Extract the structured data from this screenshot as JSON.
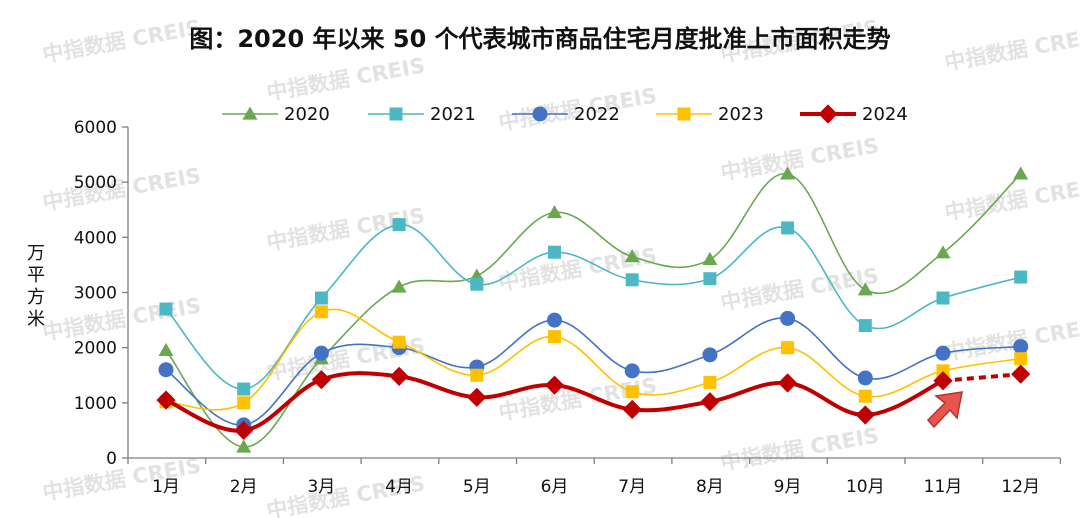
{
  "chart_data": {
    "type": "line",
    "title": "图：2020 年以来 50 个代表城市商品住宅月度批准上市面积走势",
    "ylabel": "万平方米",
    "xlabel": "",
    "ylim": [
      0,
      6000
    ],
    "yticks": [
      0,
      1000,
      2000,
      3000,
      4000,
      5000,
      6000
    ],
    "grid": false,
    "legend_position": "top",
    "categories": [
      "1月",
      "2月",
      "3月",
      "4月",
      "5月",
      "6月",
      "7月",
      "8月",
      "9月",
      "10月",
      "11月",
      "12月"
    ],
    "series": [
      {
        "name": "2020",
        "color": "#6aa84f",
        "marker": "triangle",
        "values": [
          1950,
          200,
          1800,
          3100,
          3300,
          4450,
          3650,
          3600,
          5150,
          3050,
          3720,
          5150
        ]
      },
      {
        "name": "2021",
        "color": "#4bb8c4",
        "marker": "square",
        "values": [
          2700,
          1250,
          2900,
          4230,
          3150,
          3730,
          3230,
          3250,
          4170,
          2400,
          2900,
          3280
        ]
      },
      {
        "name": "2022",
        "color": "#4472c4",
        "marker": "circle",
        "values": [
          1600,
          600,
          1900,
          2000,
          1650,
          2500,
          1580,
          1870,
          2530,
          1450,
          1900,
          2020
        ]
      },
      {
        "name": "2023",
        "color": "#ffc000",
        "marker": "square",
        "values": [
          1020,
          1000,
          2650,
          2100,
          1500,
          2200,
          1200,
          1370,
          2000,
          1120,
          1580,
          1800
        ]
      },
      {
        "name": "2024",
        "color": "#c00000",
        "marker": "diamond",
        "bold": true,
        "values": [
          1050,
          500,
          1420,
          1480,
          1100,
          1320,
          880,
          1020,
          1360,
          780,
          1400,
          1520
        ],
        "dashed_from_index": 10
      }
    ]
  },
  "watermark": {
    "cn": "中指数据",
    "en": "CREIS"
  }
}
